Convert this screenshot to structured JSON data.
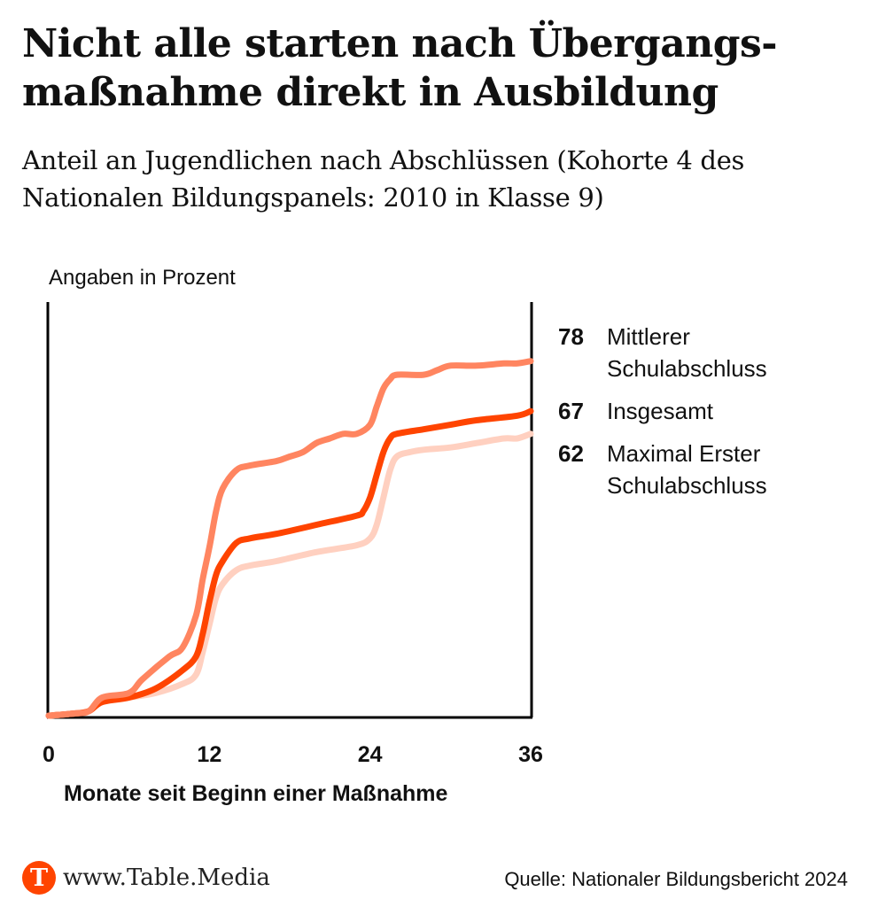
{
  "header": {
    "title": "Nicht alle starten nach Übergangs-maßnahme direkt in Ausbildung",
    "subtitle": "Anteil an Jugendlichen nach Abschlüssen (Kohorte 4 des Nationalen Bildungspanels: 2010 in Klasse 9)"
  },
  "footer": {
    "logo_letter": "T",
    "site": "www.Table.Media",
    "source": "Quelle: Nationaler Bildungsbericht 2024",
    "brand_color": "#ff4400"
  },
  "chart_data": {
    "type": "line",
    "title": "Nicht alle starten nach Übergangsmaßnahme direkt in Ausbildung",
    "unit_label": "Angaben in Prozent",
    "xlabel": "Monate seit Beginn einer Maßnahme",
    "ylabel": "",
    "xlim": [
      0,
      36
    ],
    "ylim": [
      0,
      91
    ],
    "xticks": [
      0,
      12,
      24,
      36
    ],
    "xtick_labels": [
      "0",
      "12",
      "24",
      "36"
    ],
    "grid": false,
    "legend_position": "right",
    "series": [
      {
        "name": "Maximal Erster Schulabschluss",
        "end_value": "62",
        "color": "#ffd0c0",
        "x": [
          0,
          2,
          3,
          4,
          6,
          8,
          10,
          11,
          11.5,
          12,
          12.5,
          13,
          14,
          15,
          17,
          20,
          23,
          24,
          24.5,
          25,
          25.5,
          26,
          27,
          28,
          30,
          32,
          34,
          35,
          36
        ],
        "y": [
          0,
          0.5,
          1,
          3,
          4,
          5,
          7,
          9,
          14,
          20,
          26,
          29,
          32,
          33,
          34,
          36,
          37.5,
          39,
          42,
          48,
          54,
          57,
          58,
          58.5,
          59,
          60,
          61,
          61,
          62
        ]
      },
      {
        "name": "Insgesamt",
        "end_value": "67",
        "color": "#ff4400",
        "x": [
          0,
          2,
          3,
          4,
          6,
          8,
          10,
          11,
          11.5,
          12,
          12.5,
          13,
          14,
          15,
          17,
          20,
          23,
          23.5,
          24,
          24.5,
          25,
          25.5,
          26,
          28,
          30,
          32,
          35,
          36
        ],
        "y": [
          0,
          0.5,
          1,
          3,
          4,
          6,
          10,
          13,
          18,
          25,
          31,
          34,
          38,
          39,
          40,
          42,
          44,
          45,
          48,
          53,
          58,
          61,
          62,
          63,
          64,
          65,
          66,
          67
        ]
      },
      {
        "name": "Mittlerer Schulabschluss",
        "end_value": "78",
        "color": "#ff8560",
        "x": [
          0,
          2,
          3,
          4,
          6,
          7,
          9,
          10,
          11,
          11.5,
          12,
          12.5,
          13,
          14,
          15,
          17,
          18,
          19,
          20,
          21,
          22,
          23,
          24,
          24.5,
          25,
          25.5,
          26,
          28,
          29,
          30,
          32,
          34,
          35,
          36
        ],
        "y": [
          0,
          0.5,
          1,
          4,
          5,
          8,
          13,
          15,
          22,
          30,
          37,
          45,
          50,
          54,
          55,
          56,
          57,
          58,
          60,
          61,
          62,
          62,
          64,
          68,
          72,
          74,
          75,
          75,
          76,
          77,
          77,
          77.5,
          77.5,
          78
        ]
      }
    ],
    "legend": [
      {
        "value": "78",
        "label": "Mittlerer Schulabschluss"
      },
      {
        "value": "67",
        "label": "Insgesamt"
      },
      {
        "value": "62",
        "label": "Maximal Erster Schulabschluss"
      }
    ]
  }
}
